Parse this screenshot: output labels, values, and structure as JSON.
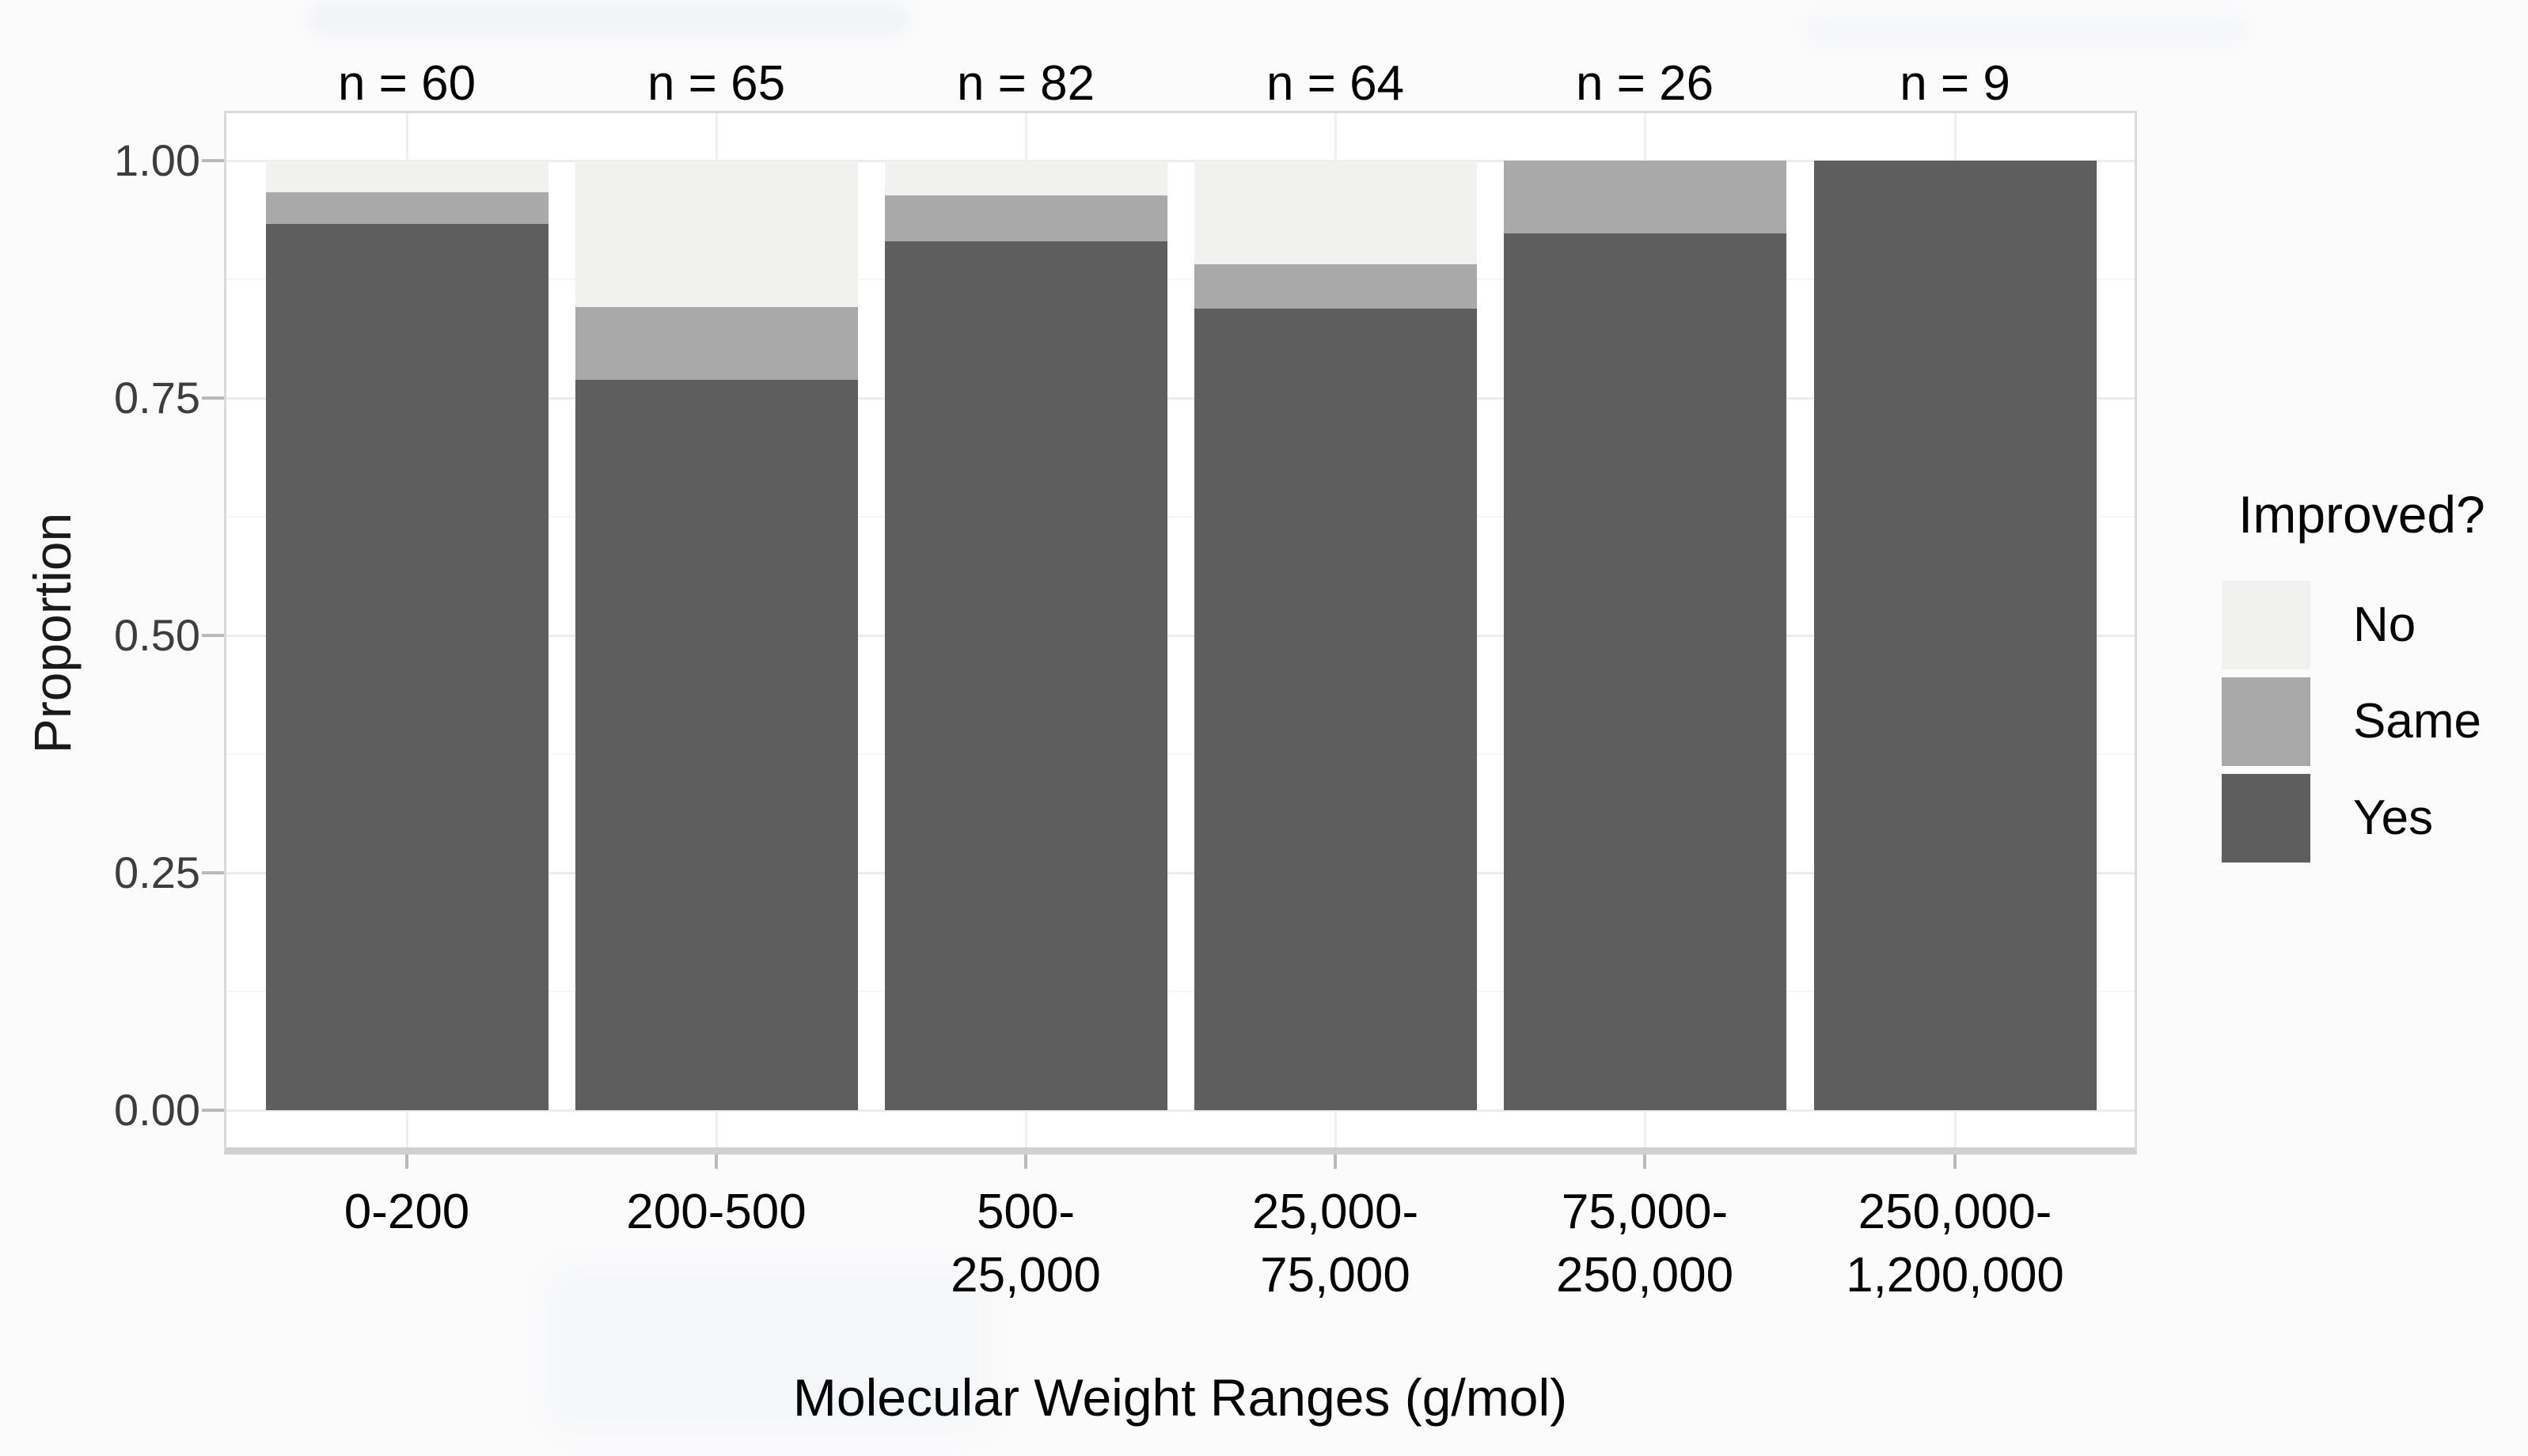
{
  "chart_data": {
    "type": "bar",
    "stacked": true,
    "orientation": "vertical",
    "title": "",
    "xlabel": "Molecular Weight Ranges (g/mol)",
    "ylabel": "Proportion",
    "legend_title": "Improved?",
    "legend_position": "right",
    "categories": [
      "0-200",
      "200-500",
      "500-\n25,000",
      "25,000-\n75,000",
      "75,000-\n250,000",
      "250,000-\n1,200,000"
    ],
    "n_labels": [
      "n = 60",
      "n = 65",
      "n = 82",
      "n = 64",
      "n = 26",
      "n = 9"
    ],
    "n_values": [
      60,
      65,
      82,
      64,
      26,
      9
    ],
    "series": [
      {
        "name": "No",
        "color": "#f1f1ef",
        "values": [
          0.033,
          0.154,
          0.037,
          0.109,
          0.0,
          0.0
        ]
      },
      {
        "name": "Same",
        "color": "#a9a9a9",
        "values": [
          0.034,
          0.077,
          0.048,
          0.047,
          0.077,
          0.0
        ]
      },
      {
        "name": "Yes",
        "color": "#5e5e5e",
        "values": [
          0.933,
          0.769,
          0.915,
          0.844,
          0.923,
          1.0
        ]
      }
    ],
    "y_ticks": [
      {
        "label": "1.00",
        "value": 1.0
      },
      {
        "label": "0.75",
        "value": 0.75
      },
      {
        "label": "0.50",
        "value": 0.5
      },
      {
        "label": "0.25",
        "value": 0.25
      },
      {
        "label": "0.00",
        "value": 0.0
      }
    ],
    "ylim": [
      0,
      1
    ],
    "grid": {
      "major_step": 0.25,
      "minor_step": 0.125
    }
  }
}
